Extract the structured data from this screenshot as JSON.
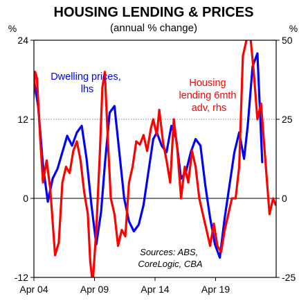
{
  "chart_data": {
    "type": "line",
    "title": "HOUSING LENDING & PRICES",
    "subtitle": "(annual % change)",
    "left_axis": {
      "unit": "%",
      "range": [
        -12,
        24
      ],
      "ticks": [
        24,
        12,
        0,
        -12
      ],
      "labels": [
        "24",
        "12",
        "0",
        "-12"
      ]
    },
    "right_axis": {
      "unit": "%",
      "range": [
        -25,
        50
      ],
      "ticks": [
        50,
        25,
        0,
        -25
      ],
      "labels": [
        "50",
        "25",
        "0",
        "-25"
      ]
    },
    "x_axis": {
      "range": [
        2004.25,
        2024.25
      ],
      "ticks": [
        2004.25,
        2009.25,
        2014.25,
        2019.25
      ],
      "labels": [
        "Apr 04",
        "Apr 09",
        "Apr 14",
        "Apr 19"
      ]
    },
    "gridlines_left": [
      24,
      12
    ],
    "zero_line": 0,
    "series": [
      {
        "name": "Dwelling prices, lhs",
        "label_lines": [
          "Dwelling prices,",
          "lhs"
        ],
        "axis": "left",
        "color": "#0000ff",
        "x": [
          2004.0,
          2004.25,
          2004.6,
          2005.0,
          2005.4,
          2005.8,
          2006.2,
          2006.6,
          2007.0,
          2007.4,
          2007.8,
          2008.2,
          2008.6,
          2009.0,
          2009.4,
          2009.8,
          2010.1,
          2010.5,
          2010.9,
          2011.3,
          2011.7,
          2012.1,
          2012.5,
          2012.9,
          2013.3,
          2013.7,
          2014.1,
          2014.4,
          2014.8,
          2015.2,
          2015.6,
          2016.0,
          2016.4,
          2016.8,
          2017.2,
          2017.6,
          2018.0,
          2018.4,
          2018.8,
          2019.2,
          2019.6,
          2020.0,
          2020.4,
          2020.8,
          2021.2,
          2021.6,
          2021.9,
          2022.3,
          2022.7,
          2023.1
        ],
        "y": [
          16,
          18,
          14,
          5,
          -0.5,
          3,
          4.5,
          7,
          9.5,
          8,
          10,
          11,
          6,
          -1,
          -7,
          -2,
          5,
          13,
          14,
          7,
          0,
          -3.5,
          -5,
          -4,
          -1,
          4,
          9,
          10,
          8,
          7,
          11,
          9,
          3,
          4,
          7,
          9,
          8,
          2,
          -3,
          -7,
          -9,
          -3,
          2,
          7,
          10,
          6,
          11,
          20,
          22,
          5.5
        ]
      },
      {
        "name": "Housing lending 6mth adv, rhs",
        "label_lines": [
          "Housing",
          "lending 6mth",
          "adv, rhs"
        ],
        "axis": "right",
        "color": "#ff0000",
        "x": [
          2004.0,
          2004.35,
          2004.5,
          2004.75,
          2005.0,
          2005.3,
          2005.6,
          2006.0,
          2006.3,
          2006.6,
          2006.9,
          2007.2,
          2007.5,
          2007.8,
          2008.1,
          2008.4,
          2008.7,
          2008.9,
          2009.1,
          2009.4,
          2009.7,
          2009.9,
          2010.1,
          2010.4,
          2010.6,
          2010.9,
          2011.2,
          2011.5,
          2011.8,
          2012.1,
          2012.4,
          2012.7,
          2013.0,
          2013.3,
          2013.6,
          2013.9,
          2014.1,
          2014.4,
          2014.6,
          2014.9,
          2015.2,
          2015.5,
          2015.8,
          2016.1,
          2016.4,
          2016.7,
          2017.0,
          2017.3,
          2017.6,
          2017.9,
          2018.2,
          2018.5,
          2018.8,
          2019.1,
          2019.4,
          2019.7,
          2020.0,
          2020.3,
          2020.6,
          2020.9,
          2021.2,
          2021.5,
          2021.8,
          2022.1,
          2022.4,
          2022.7,
          2023.0,
          2023.4,
          2023.7,
          2024.0,
          2024.2
        ],
        "y": [
          20,
          40,
          38,
          20,
          5,
          12,
          3,
          -18,
          -14,
          5,
          10,
          8,
          15,
          18,
          12,
          2,
          -5,
          -20,
          -27,
          -10,
          15,
          35,
          40,
          15,
          0,
          -5,
          -15,
          -10,
          -12,
          5,
          10,
          18,
          17,
          20,
          15,
          22,
          25,
          20,
          28,
          18,
          12,
          5,
          25,
          15,
          0,
          10,
          5,
          15,
          10,
          0,
          -5,
          -10,
          -15,
          -8,
          -15,
          -17,
          -10,
          -5,
          0,
          0,
          10,
          45,
          50,
          52,
          40,
          25,
          30,
          10,
          -5,
          0,
          -2
        ]
      }
    ],
    "annotations": [
      {
        "lines": [
          "Sources: ABS,",
          "CoreLogic, CBA"
        ],
        "type": "source"
      }
    ],
    "colors": {
      "blue": "#0000ff",
      "red": "#ff0000",
      "grid": "#808080"
    }
  }
}
